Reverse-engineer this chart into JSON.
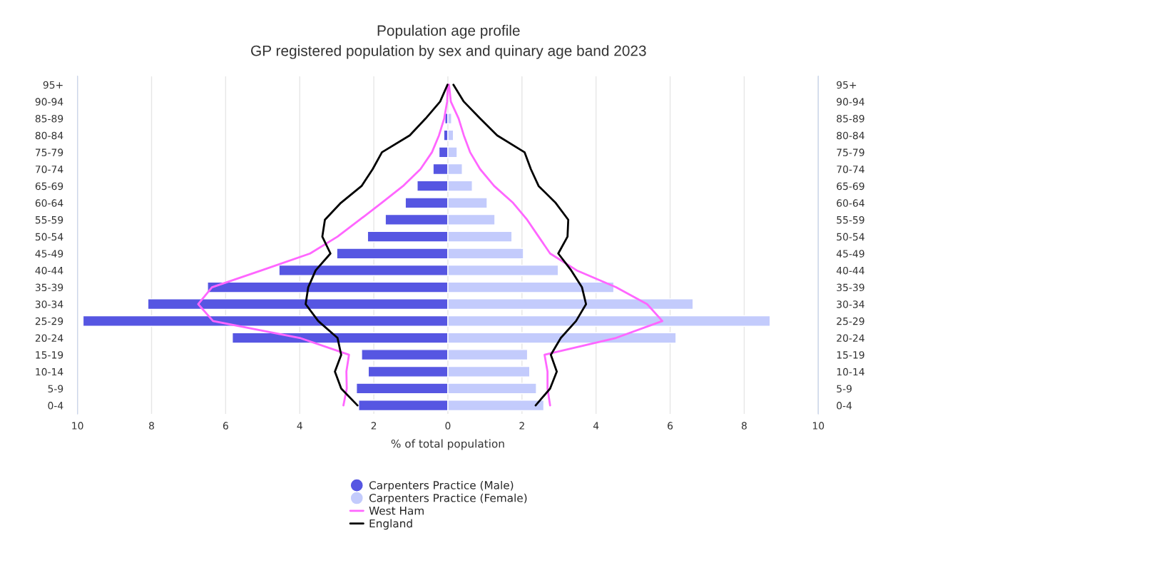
{
  "chart_data": {
    "type": "bar",
    "orientation": "horizontal",
    "stacked": true,
    "title": "Population age profile",
    "subtitle": "GP registered population by sex and quinary age band 2023",
    "xlabel": "% of total population",
    "categories": [
      "95+",
      "90-94",
      "85-89",
      "80-84",
      "75-79",
      "70-74",
      "65-69",
      "60-64",
      "55-59",
      "50-54",
      "45-49",
      "40-44",
      "35-39",
      "30-34",
      "25-29",
      "20-24",
      "15-19",
      "10-14",
      "5-9",
      "0-4"
    ],
    "series": [
      {
        "name": "Carpenters Practice (Male)",
        "color": "#5656e2",
        "values": [
          null,
          null,
          -0.08,
          -0.11,
          -0.24,
          -0.4,
          -0.83,
          -1.15,
          -1.69,
          -2.17,
          -3.0,
          -4.56,
          -6.49,
          -8.1,
          -9.85,
          -5.82,
          -2.33,
          -2.15,
          -2.47,
          -2.41
        ]
      },
      {
        "name": "Carpenters Practice (Female)",
        "color": "#c3cbfc",
        "values": [
          null,
          null,
          0.1,
          0.15,
          0.25,
          0.39,
          0.66,
          1.06,
          1.27,
          1.73,
          2.04,
          2.98,
          4.48,
          6.62,
          8.7,
          6.16,
          2.15,
          2.21,
          2.39,
          2.59
        ]
      },
      {
        "name": "West Ham",
        "type": "line",
        "color": "#ff66ff",
        "values": [
          0,
          -0.02,
          -0.1,
          -0.24,
          -0.43,
          -0.74,
          -1.21,
          -1.79,
          -2.38,
          -2.98,
          -3.72,
          -5.03,
          -6.37,
          -6.74,
          -6.34,
          -4.0,
          -2.67,
          -2.74,
          -2.73,
          -2.82
        ]
      },
      {
        "type": "line",
        "color": "#ff66ff",
        "values": [
          0.03,
          0.08,
          0.29,
          0.43,
          0.6,
          0.87,
          1.25,
          1.76,
          2.14,
          2.45,
          2.76,
          3.48,
          4.54,
          5.38,
          5.79,
          4.54,
          2.61,
          2.69,
          2.69,
          2.76
        ]
      },
      {
        "name": "England",
        "type": "line",
        "color": "#000000",
        "values": [
          -0.01,
          -0.21,
          -0.6,
          -1.03,
          -1.78,
          -2.03,
          -2.33,
          -2.89,
          -3.32,
          -3.39,
          -3.17,
          -3.57,
          -3.77,
          -3.84,
          -3.5,
          -2.98,
          -2.88,
          -3.05,
          -2.88,
          -2.44
        ]
      },
      {
        "type": "line",
        "color": "#000000",
        "values": [
          0.15,
          0.43,
          0.87,
          1.33,
          2.07,
          2.24,
          2.45,
          2.91,
          3.25,
          3.23,
          2.98,
          3.33,
          3.62,
          3.73,
          3.46,
          3.05,
          2.78,
          2.94,
          2.76,
          2.37
        ]
      }
    ],
    "xlim": [
      -10,
      10
    ],
    "xticks": [
      {
        "value": -10,
        "label": "10"
      },
      {
        "value": -8,
        "label": "8"
      },
      {
        "value": -6,
        "label": "6"
      },
      {
        "value": -4,
        "label": "4"
      },
      {
        "value": -2,
        "label": "2"
      },
      0,
      2,
      4,
      6,
      8,
      10
    ],
    "grid": "x",
    "legend": "bottom",
    "marker": "none",
    "line_style": "solid"
  }
}
